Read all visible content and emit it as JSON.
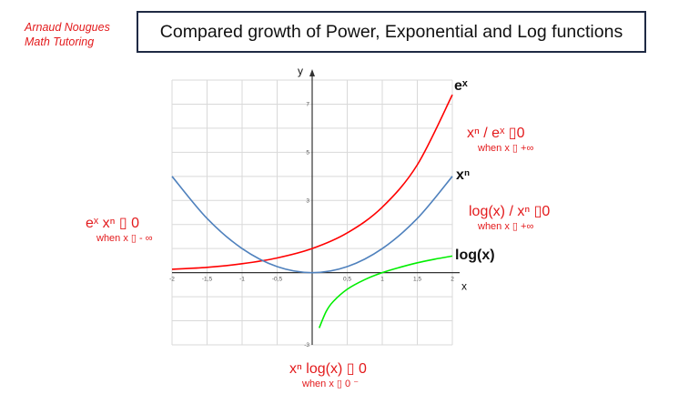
{
  "author": {
    "line1": "Arnaud Nougues",
    "line2": "Math Tutoring"
  },
  "title": "Compared growth of Power, Exponential and Log functions",
  "curve_labels": {
    "exp": "eˣ",
    "power": "xⁿ",
    "log": "log(x)"
  },
  "annotations": {
    "exp_over": {
      "main": "xⁿ  / eˣ  ▯0",
      "sub": "when x ▯ +∞"
    },
    "log_over": {
      "main": "log(x) / xⁿ  ▯0",
      "sub": "when x ▯ +∞"
    },
    "left": {
      "main": "eˣ  xⁿ  ▯ 0",
      "sub": "when x ▯ - ∞"
    },
    "bottom": {
      "main": "xⁿ log(x) ▯ 0",
      "sub": "when x ▯ 0 ⁻"
    }
  },
  "colors": {
    "exp": "#ff0000",
    "power": "#4f81bd",
    "log": "#00ee00",
    "annotation": "#e31a1c",
    "grid": "#d9d9d9"
  },
  "chart_data": {
    "type": "line",
    "xlabel": "x",
    "ylabel": "y",
    "xlim": [
      -2,
      2
    ],
    "ylim": [
      -3,
      8
    ],
    "x_ticks": [
      -2,
      -1.5,
      -1,
      -0.5,
      0.5,
      1,
      1.5,
      2
    ],
    "x_tick_labels": [
      "-2",
      "-1,5",
      "-1",
      "-0,5",
      "0,5",
      "1",
      "1,5",
      "2"
    ],
    "y_ticks": [
      -3,
      3,
      5,
      7
    ],
    "y_tick_labels": [
      "-3",
      "3",
      "5",
      "7"
    ],
    "grid": true,
    "series": [
      {
        "key": "exp",
        "x": [
          -2,
          -1.5,
          -1,
          -0.5,
          0,
          0.5,
          1,
          1.5,
          2
        ],
        "y": [
          0.14,
          0.22,
          0.37,
          0.61,
          1.0,
          1.65,
          2.72,
          4.48,
          7.39
        ]
      },
      {
        "key": "power",
        "x": [
          -2,
          -1.5,
          -1,
          -0.5,
          0,
          0.5,
          1,
          1.5,
          2
        ],
        "y": [
          4.0,
          2.25,
          1.0,
          0.25,
          0,
          0.25,
          1.0,
          2.25,
          4.0
        ]
      },
      {
        "key": "log",
        "x": [
          0.1,
          0.2,
          0.3,
          0.5,
          0.75,
          1,
          1.25,
          1.5,
          1.75,
          2
        ],
        "y": [
          -2.3,
          -1.61,
          -1.2,
          -0.69,
          -0.29,
          0,
          0.22,
          0.41,
          0.56,
          0.69
        ]
      }
    ]
  }
}
